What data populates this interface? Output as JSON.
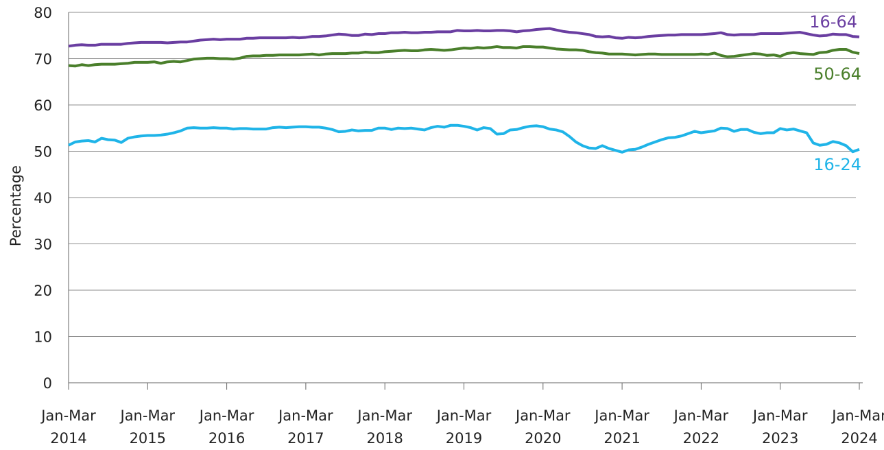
{
  "chart_data": {
    "type": "line",
    "y_label": "Percentage",
    "categories": [
      "Jan-Mar 2014",
      null,
      null,
      null,
      null,
      null,
      null,
      null,
      null,
      null,
      null,
      null,
      "Jan-Mar 2015",
      null,
      null,
      null,
      null,
      null,
      null,
      null,
      null,
      null,
      null,
      null,
      "Jan-Mar 2016",
      null,
      null,
      null,
      null,
      null,
      null,
      null,
      null,
      null,
      null,
      null,
      "Jan-Mar 2017",
      null,
      null,
      null,
      null,
      null,
      null,
      null,
      null,
      null,
      null,
      null,
      "Jan-Mar 2018",
      null,
      null,
      null,
      null,
      null,
      null,
      null,
      null,
      null,
      null,
      null,
      "Jan-Mar 2019",
      null,
      null,
      null,
      null,
      null,
      null,
      null,
      null,
      null,
      null,
      null,
      "Jan-Mar 2020",
      null,
      null,
      null,
      null,
      null,
      null,
      null,
      null,
      null,
      null,
      null,
      "Jan-Mar 2021",
      null,
      null,
      null,
      null,
      null,
      null,
      null,
      null,
      null,
      null,
      null,
      "Jan-Mar 2022",
      null,
      null,
      null,
      null,
      null,
      null,
      null,
      null,
      null,
      null,
      null,
      "Jan-Mar 2023",
      null,
      null,
      null,
      null,
      null,
      null,
      null,
      null,
      null,
      null,
      null,
      "Jan-Mar 2024"
    ],
    "series": [
      {
        "name": "16-64",
        "color": "#6a3ea1",
        "values": [
          72.7,
          72.9,
          73.0,
          72.9,
          72.9,
          73.1,
          73.1,
          73.1,
          73.1,
          73.3,
          73.4,
          73.5,
          73.5,
          73.5,
          73.5,
          73.4,
          73.5,
          73.6,
          73.6,
          73.8,
          74.0,
          74.1,
          74.2,
          74.1,
          74.2,
          74.2,
          74.2,
          74.4,
          74.4,
          74.5,
          74.5,
          74.5,
          74.5,
          74.5,
          74.6,
          74.5,
          74.6,
          74.8,
          74.8,
          74.9,
          75.1,
          75.3,
          75.2,
          75.0,
          75.0,
          75.3,
          75.2,
          75.4,
          75.4,
          75.6,
          75.6,
          75.7,
          75.6,
          75.6,
          75.7,
          75.7,
          75.8,
          75.8,
          75.8,
          76.1,
          76.0,
          76.0,
          76.1,
          76.0,
          76.0,
          76.1,
          76.1,
          76.0,
          75.8,
          76.0,
          76.1,
          76.3,
          76.4,
          76.5,
          76.2,
          75.9,
          75.7,
          75.6,
          75.4,
          75.2,
          74.8,
          74.7,
          74.8,
          74.5,
          74.4,
          74.6,
          74.5,
          74.6,
          74.8,
          74.9,
          75.0,
          75.1,
          75.1,
          75.2,
          75.2,
          75.2,
          75.2,
          75.3,
          75.4,
          75.6,
          75.2,
          75.1,
          75.2,
          75.2,
          75.2,
          75.4,
          75.4,
          75.4,
          75.4,
          75.5,
          75.6,
          75.7,
          75.4,
          75.1,
          74.9,
          75.0,
          75.3,
          75.2,
          75.2,
          74.8,
          74.7
        ]
      },
      {
        "name": "50-64",
        "color": "#4a7f2b",
        "values": [
          68.5,
          68.4,
          68.7,
          68.5,
          68.7,
          68.8,
          68.8,
          68.8,
          68.9,
          69.0,
          69.2,
          69.2,
          69.2,
          69.3,
          69.0,
          69.3,
          69.4,
          69.3,
          69.6,
          69.9,
          70.0,
          70.1,
          70.1,
          70.0,
          70.0,
          69.9,
          70.1,
          70.5,
          70.6,
          70.6,
          70.7,
          70.7,
          70.8,
          70.8,
          70.8,
          70.8,
          70.9,
          71.0,
          70.8,
          71.0,
          71.1,
          71.1,
          71.1,
          71.2,
          71.2,
          71.4,
          71.3,
          71.3,
          71.5,
          71.6,
          71.7,
          71.8,
          71.7,
          71.7,
          71.9,
          72.0,
          71.9,
          71.8,
          71.9,
          72.1,
          72.3,
          72.2,
          72.4,
          72.3,
          72.4,
          72.6,
          72.4,
          72.4,
          72.3,
          72.6,
          72.6,
          72.5,
          72.5,
          72.3,
          72.1,
          72.0,
          71.9,
          71.9,
          71.8,
          71.5,
          71.3,
          71.2,
          71.0,
          71.0,
          71.0,
          70.9,
          70.8,
          70.9,
          71.0,
          71.0,
          70.9,
          70.9,
          70.9,
          70.9,
          70.9,
          70.9,
          71.0,
          70.9,
          71.2,
          70.7,
          70.4,
          70.5,
          70.7,
          70.9,
          71.1,
          71.0,
          70.7,
          70.8,
          70.5,
          71.1,
          71.3,
          71.1,
          71.0,
          70.9,
          71.3,
          71.4,
          71.8,
          72.0,
          72.0,
          71.4,
          71.1
        ]
      },
      {
        "name": "16-24",
        "color": "#1fb4e8",
        "values": [
          51.3,
          52.0,
          52.2,
          52.3,
          52.0,
          52.8,
          52.5,
          52.4,
          51.9,
          52.8,
          53.1,
          53.3,
          53.4,
          53.4,
          53.5,
          53.7,
          54.0,
          54.4,
          55.0,
          55.1,
          55.0,
          55.0,
          55.1,
          55.0,
          55.0,
          54.8,
          54.9,
          54.9,
          54.8,
          54.8,
          54.8,
          55.1,
          55.2,
          55.1,
          55.2,
          55.3,
          55.3,
          55.2,
          55.2,
          55.0,
          54.7,
          54.2,
          54.3,
          54.6,
          54.4,
          54.5,
          54.5,
          55.0,
          55.0,
          54.7,
          55.0,
          54.9,
          55.0,
          54.8,
          54.6,
          55.1,
          55.4,
          55.2,
          55.6,
          55.6,
          55.4,
          55.1,
          54.6,
          55.1,
          54.9,
          53.7,
          53.8,
          54.6,
          54.7,
          55.1,
          55.4,
          55.5,
          55.3,
          54.8,
          54.6,
          54.2,
          53.2,
          52.0,
          51.2,
          50.7,
          50.6,
          51.2,
          50.6,
          50.2,
          49.8,
          50.3,
          50.4,
          50.9,
          51.5,
          52.0,
          52.5,
          52.9,
          53.0,
          53.3,
          53.8,
          54.3,
          54.0,
          54.2,
          54.4,
          55.0,
          54.9,
          54.3,
          54.7,
          54.7,
          54.1,
          53.8,
          54.0,
          54.0,
          54.9,
          54.6,
          54.8,
          54.4,
          54.0,
          51.8,
          51.3,
          51.5,
          52.1,
          51.8,
          51.2,
          49.9,
          50.4
        ]
      }
    ],
    "ylim": [
      0,
      80
    ],
    "yticks": [
      0,
      10,
      20,
      30,
      40,
      50,
      60,
      70,
      80
    ],
    "grid": true
  }
}
